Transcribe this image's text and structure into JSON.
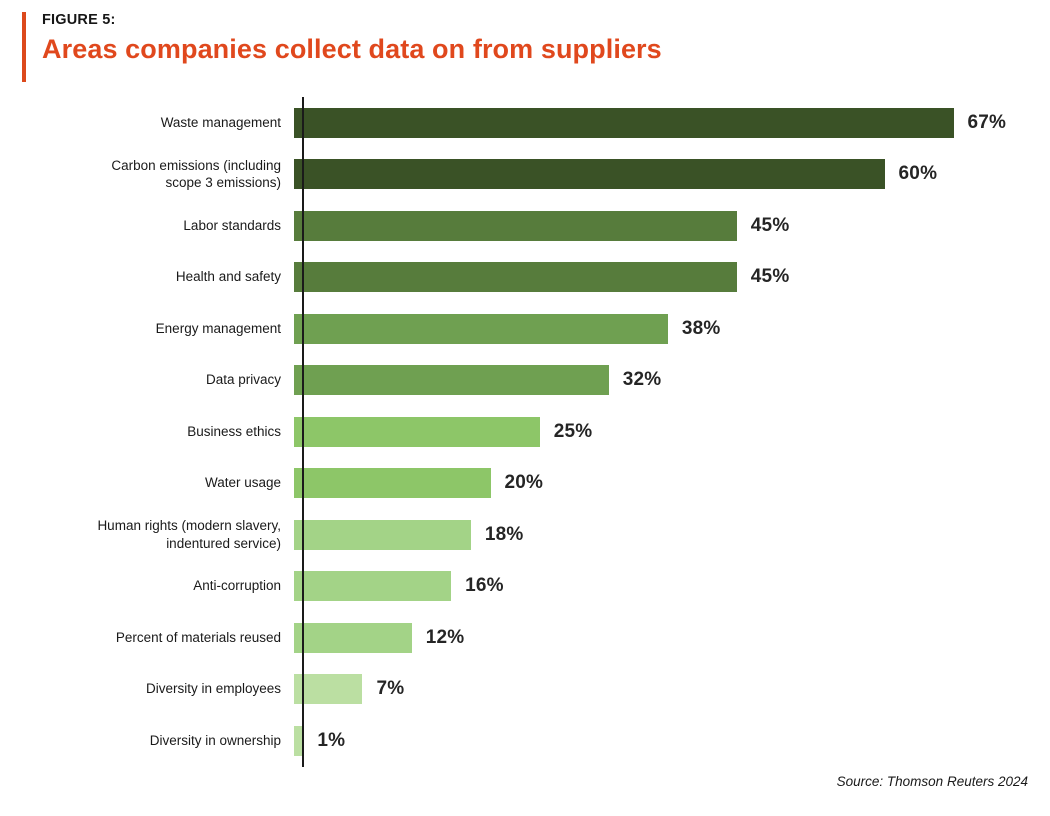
{
  "header": {
    "figure_label": "FIGURE 5:",
    "title": "Areas companies collect data on from suppliers"
  },
  "chart_data": {
    "type": "bar",
    "orientation": "horizontal",
    "title": "Areas companies collect data on from suppliers",
    "xlabel": "",
    "ylabel": "",
    "xlim": [
      0,
      67
    ],
    "grid": false,
    "legend": false,
    "value_suffix": "%",
    "categories": [
      "Waste management",
      "Carbon emissions (including\nscope 3 emissions)",
      "Labor standards",
      "Health and safety",
      "Energy management",
      "Data privacy",
      "Business ethics",
      "Water usage",
      "Human rights (modern slavery,\nindentured service)",
      "Anti-corruption",
      "Percent of materials reused",
      "Diversity in employees",
      "Diversity in ownership"
    ],
    "values": [
      67,
      60,
      45,
      45,
      38,
      32,
      25,
      20,
      18,
      16,
      12,
      7,
      1
    ],
    "value_labels": [
      "67%",
      "60%",
      "45%",
      "45%",
      "38%",
      "32%",
      "25%",
      "20%",
      "18%",
      "16%",
      "12%",
      "7%",
      "1%"
    ],
    "bar_colors": [
      "#3A5226",
      "#3A5226",
      "#577C3C",
      "#577C3C",
      "#6FA051",
      "#6FA051",
      "#8DC668",
      "#8DC668",
      "#A3D387",
      "#A3D387",
      "#A3D387",
      "#BBDFA2",
      "#BBDFA2"
    ]
  },
  "footer": {
    "source": "Source: Thomson Reuters 2024"
  },
  "colors": {
    "accent_orange": "#DC491C",
    "title_orange": "#E0481D",
    "axis": "#1A1A1A",
    "label_text": "#1A1A1A",
    "value_text": "#252525",
    "background": "#FFFFFF"
  }
}
